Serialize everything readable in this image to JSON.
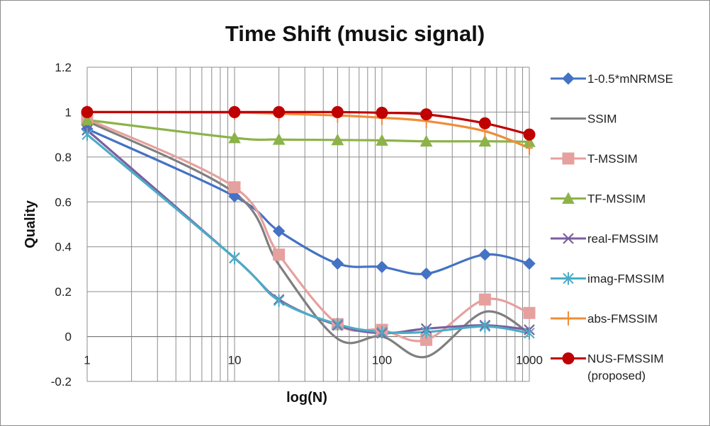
{
  "chart_data": {
    "type": "line",
    "title": "Time Shift (music signal)",
    "xlabel": "log(N)",
    "ylabel": "Quality",
    "xscale": "log",
    "xlim": [
      1,
      1000
    ],
    "ylim": [
      -0.2,
      1.2
    ],
    "x_ticks": [
      "1",
      "10",
      "100",
      "1000"
    ],
    "y_ticks": [
      "-0.2",
      "0",
      "0.2",
      "0.4",
      "0.6",
      "0.8",
      "1",
      "1.2"
    ],
    "grid": true,
    "legend_position": "right",
    "x": [
      1,
      10,
      20,
      50,
      100,
      200,
      500,
      1000
    ],
    "series": [
      {
        "name": "1-0.5*mNRMSE",
        "color": "#4472C4",
        "marker": "diamond",
        "values": [
          0.925,
          0.625,
          0.47,
          0.325,
          0.31,
          0.28,
          0.365,
          0.325
        ]
      },
      {
        "name": "SSIM",
        "color": "#7F7F7F",
        "marker": "none",
        "values": [
          0.96,
          0.64,
          0.32,
          -0.01,
          0.0,
          -0.09,
          0.11,
          0.015
        ]
      },
      {
        "name": "T-MSSIM",
        "color": "#E6A09E",
        "marker": "square",
        "values": [
          0.97,
          0.665,
          0.365,
          0.055,
          0.03,
          -0.015,
          0.165,
          0.105
        ]
      },
      {
        "name": "TF-MSSIM",
        "color": "#8CB34A",
        "marker": "triangle",
        "values": [
          0.965,
          0.885,
          0.878,
          0.876,
          0.874,
          0.87,
          0.87,
          0.868
        ]
      },
      {
        "name": "real-FMSSIM",
        "color": "#7A5FA0",
        "marker": "x",
        "values": [
          0.92,
          0.35,
          0.165,
          0.05,
          0.015,
          0.035,
          0.05,
          0.03
        ]
      },
      {
        "name": "imag-FMSSIM",
        "color": "#4BACC6",
        "marker": "star",
        "values": [
          0.9,
          0.35,
          0.16,
          0.055,
          0.02,
          0.02,
          0.045,
          0.015
        ]
      },
      {
        "name": "abs-FMSSIM",
        "color": "#F08C37",
        "marker": "plus",
        "values": [
          1.0,
          0.998,
          0.993,
          0.985,
          0.975,
          0.96,
          0.915,
          0.84
        ]
      },
      {
        "name": "NUS-FMSSIM",
        "name_line2": "(proposed)",
        "color": "#C00000",
        "marker": "circle",
        "values": [
          1.0,
          1.0,
          1.0,
          1.0,
          0.997,
          0.99,
          0.95,
          0.9
        ]
      }
    ]
  }
}
